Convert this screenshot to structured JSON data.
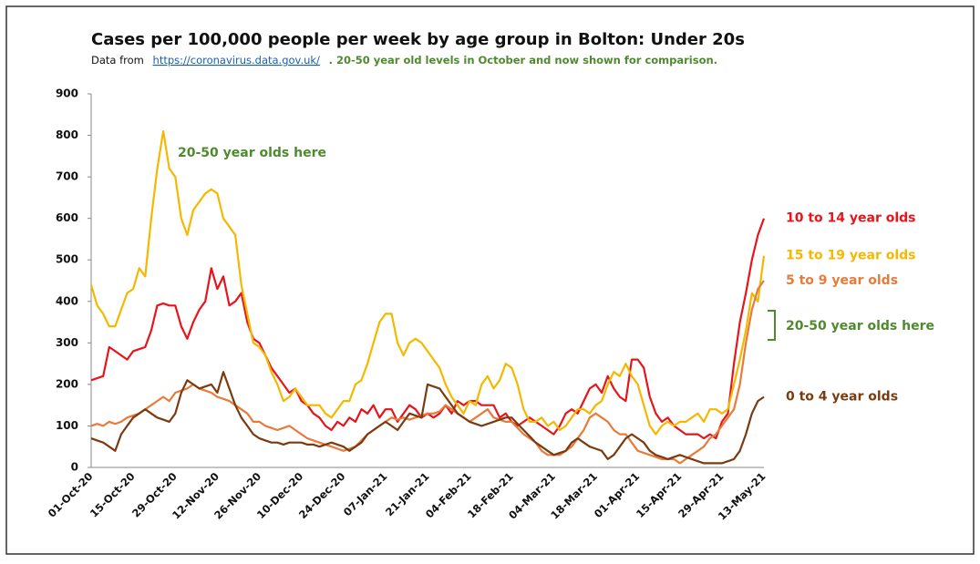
{
  "chart_data": {
    "type": "line",
    "title": "Cases per 100,000 people per week by age group in Bolton: Under 20s",
    "source_prefix": "Data from",
    "source_link": "https://coronavirus.data.gov.uk/",
    "subtitle_note": ". 20-50 year old levels in October and now shown for comparison.",
    "annotations": [
      "20-50 year olds here",
      "20-50 year olds here"
    ],
    "categories": [
      "01-Oct-20",
      null,
      null,
      null,
      null,
      null,
      null,
      "15-Oct-20",
      null,
      null,
      null,
      null,
      null,
      null,
      "29-Oct-20",
      null,
      null,
      null,
      null,
      null,
      null,
      "12-Nov-20",
      null,
      null,
      null,
      null,
      null,
      null,
      "26-Nov-20",
      null,
      null,
      null,
      null,
      null,
      null,
      "10-Dec-20",
      null,
      null,
      null,
      null,
      null,
      null,
      "24-Dec-20",
      null,
      null,
      null,
      null,
      null,
      null,
      "07-Jan-21",
      null,
      null,
      null,
      null,
      null,
      null,
      "21-Jan-21",
      null,
      null,
      null,
      null,
      null,
      null,
      "04-Feb-21",
      null,
      null,
      null,
      null,
      null,
      null,
      "18-Feb-21",
      null,
      null,
      null,
      null,
      null,
      null,
      "04-Mar-21",
      null,
      null,
      null,
      null,
      null,
      null,
      "18-Mar-21",
      null,
      null,
      null,
      null,
      null,
      null,
      "01-Apr-21",
      null,
      null,
      null,
      null,
      null,
      null,
      "15-Apr-21",
      null,
      null,
      null,
      null,
      null,
      null,
      "29-Apr-21",
      null,
      null,
      null,
      null,
      null,
      null,
      "13-May-21"
    ],
    "series": [
      {
        "name": "10 to 14 year olds",
        "color": "#e8141c",
        "values": [
          210,
          215,
          220,
          290,
          280,
          270,
          260,
          280,
          285,
          290,
          330,
          390,
          395,
          390,
          390,
          340,
          310,
          350,
          380,
          400,
          480,
          430,
          460,
          390,
          400,
          420,
          350,
          310,
          300,
          270,
          240,
          220,
          200,
          180,
          190,
          160,
          150,
          130,
          120,
          100,
          90,
          110,
          100,
          120,
          110,
          140,
          130,
          150,
          120,
          140,
          140,
          110,
          130,
          150,
          140,
          120,
          130,
          120,
          130,
          150,
          130,
          160,
          150,
          160,
          160,
          150,
          150,
          150,
          120,
          130,
          110,
          100,
          110,
          120,
          110,
          100,
          90,
          80,
          100,
          130,
          140,
          130,
          160,
          190,
          200,
          180,
          220,
          190,
          170,
          160,
          260,
          260,
          240,
          170,
          130,
          110,
          120,
          100,
          90,
          80,
          80,
          80,
          70,
          80,
          70,
          110,
          130,
          250,
          350,
          420,
          500,
          560,
          600
        ]
      },
      {
        "name": "15 to 19 year olds",
        "color": "#f5b800",
        "values": [
          440,
          390,
          370,
          340,
          340,
          380,
          420,
          430,
          480,
          460,
          600,
          720,
          810,
          720,
          700,
          600,
          560,
          620,
          640,
          660,
          670,
          660,
          600,
          580,
          560,
          440,
          370,
          300,
          290,
          270,
          230,
          200,
          160,
          170,
          190,
          170,
          150,
          150,
          150,
          130,
          120,
          140,
          160,
          160,
          200,
          210,
          250,
          300,
          350,
          370,
          370,
          300,
          270,
          300,
          310,
          300,
          280,
          260,
          240,
          200,
          170,
          150,
          130,
          160,
          150,
          200,
          220,
          190,
          210,
          250,
          240,
          200,
          140,
          110,
          110,
          120,
          100,
          110,
          90,
          100,
          120,
          140,
          140,
          130,
          150,
          160,
          200,
          230,
          220,
          250,
          220,
          200,
          150,
          100,
          80,
          100,
          110,
          100,
          110,
          110,
          120,
          130,
          110,
          140,
          140,
          130,
          140,
          200,
          260,
          330,
          420,
          400,
          510
        ]
      },
      {
        "name": "5 to 9 year olds",
        "color": "#e87a3a",
        "values": [
          100,
          105,
          100,
          110,
          105,
          110,
          120,
          125,
          130,
          140,
          150,
          160,
          170,
          160,
          180,
          185,
          190,
          200,
          190,
          185,
          180,
          170,
          165,
          160,
          150,
          140,
          130,
          110,
          110,
          100,
          95,
          90,
          95,
          100,
          90,
          80,
          70,
          65,
          60,
          55,
          50,
          45,
          40,
          45,
          50,
          65,
          80,
          90,
          100,
          110,
          120,
          115,
          120,
          115,
          120,
          125,
          130,
          130,
          135,
          150,
          140,
          130,
          120,
          110,
          120,
          130,
          140,
          120,
          115,
          110,
          110,
          95,
          80,
          70,
          60,
          40,
          30,
          30,
          30,
          40,
          50,
          70,
          90,
          120,
          130,
          120,
          110,
          90,
          80,
          80,
          60,
          40,
          35,
          30,
          25,
          20,
          20,
          20,
          10,
          20,
          30,
          40,
          50,
          70,
          80,
          100,
          120,
          140,
          200,
          300,
          380,
          430,
          450
        ]
      },
      {
        "name": "0 to 4 year olds",
        "color": "#7a3b10",
        "values": [
          70,
          65,
          60,
          50,
          40,
          80,
          100,
          120,
          130,
          140,
          130,
          120,
          115,
          110,
          130,
          180,
          210,
          200,
          190,
          195,
          200,
          180,
          230,
          190,
          150,
          120,
          100,
          80,
          70,
          65,
          60,
          60,
          55,
          60,
          60,
          60,
          55,
          55,
          50,
          55,
          60,
          55,
          50,
          40,
          50,
          60,
          80,
          90,
          100,
          110,
          100,
          90,
          110,
          130,
          125,
          120,
          200,
          195,
          190,
          170,
          150,
          130,
          120,
          110,
          105,
          100,
          105,
          110,
          115,
          120,
          120,
          105,
          90,
          75,
          60,
          50,
          40,
          30,
          35,
          40,
          60,
          70,
          60,
          50,
          45,
          40,
          20,
          30,
          50,
          70,
          80,
          70,
          60,
          40,
          30,
          25,
          20,
          25,
          30,
          25,
          20,
          15,
          10,
          10,
          10,
          10,
          15,
          20,
          40,
          80,
          130,
          160,
          170
        ]
      }
    ],
    "ylim": [
      0,
      900
    ],
    "yticks": [
      0,
      100,
      200,
      300,
      400,
      500,
      600,
      700,
      800,
      900
    ],
    "grid": false
  }
}
